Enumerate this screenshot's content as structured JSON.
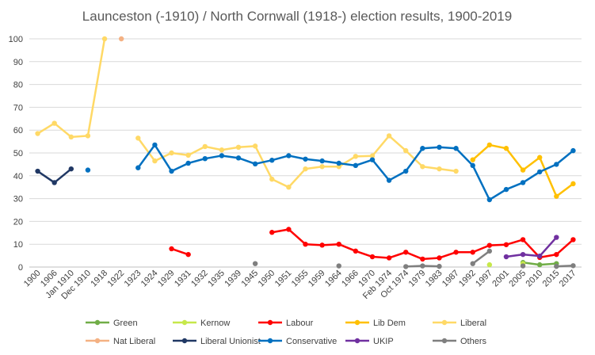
{
  "chart_data": {
    "type": "line",
    "title": "Launceston (-1910) / North Cornwall (1918-) election results, 1900-2019",
    "xlabel": "",
    "ylabel": "",
    "ylim": [
      0,
      100
    ],
    "yticks": [
      0,
      10,
      20,
      30,
      40,
      50,
      60,
      70,
      80,
      90,
      100
    ],
    "grid": true,
    "legend_position": "bottom",
    "categories": [
      "1900",
      "1906",
      "Jan 1910",
      "Dec 1910",
      "1918",
      "1922",
      "1923",
      "1924",
      "1929",
      "1931",
      "1932",
      "1935",
      "1939",
      "1945",
      "1950",
      "1951",
      "1955",
      "1959",
      "1964",
      "1966",
      "1970",
      "Feb 1974",
      "Oct 1974",
      "1979",
      "1983",
      "1987",
      "1992",
      "1997",
      "2001",
      "2005",
      "2010",
      "2015",
      "2017"
    ],
    "visible_tick_labels": [
      "1900",
      "1906",
      "Jan 1910",
      "Dec 1910",
      "1918",
      "1922",
      "1923",
      "1924",
      "1929",
      "1931",
      "1932",
      "1935",
      "1939",
      "1945",
      "1950",
      "1951",
      "1955",
      "1959",
      "1964",
      "1966",
      "1970",
      "Feb 1974",
      "Oct 1974",
      "1979",
      "1983",
      "1987",
      "1992",
      "1997",
      "2001",
      "2005",
      "2010",
      "2015",
      "2017"
    ],
    "series": [
      {
        "name": "Green",
        "color": "#70ad47",
        "values": [
          null,
          null,
          null,
          null,
          null,
          null,
          null,
          null,
          null,
          null,
          null,
          null,
          null,
          null,
          null,
          null,
          null,
          null,
          null,
          null,
          null,
          null,
          null,
          null,
          null,
          null,
          null,
          null,
          null,
          2.0,
          1.0,
          1.5,
          null
        ]
      },
      {
        "name": "Kernow",
        "color": "#c6e84a",
        "values": [
          null,
          null,
          null,
          null,
          null,
          null,
          null,
          null,
          null,
          null,
          null,
          null,
          null,
          null,
          null,
          null,
          null,
          null,
          null,
          null,
          null,
          null,
          null,
          null,
          null,
          null,
          null,
          1.0,
          null,
          1.5,
          null,
          null,
          null
        ]
      },
      {
        "name": "Labour",
        "color": "#ff0000",
        "values": [
          null,
          null,
          null,
          null,
          null,
          null,
          null,
          null,
          8.0,
          5.5,
          null,
          null,
          null,
          null,
          15.2,
          16.5,
          10.0,
          9.6,
          10.0,
          7.0,
          4.5,
          4.0,
          6.5,
          3.5,
          4.0,
          6.5,
          6.5,
          9.5,
          9.8,
          12.0,
          4.2,
          5.5,
          12.0
        ]
      },
      {
        "name": "Lib Dem",
        "color": "#ffc000",
        "values": [
          null,
          null,
          null,
          null,
          null,
          null,
          null,
          null,
          null,
          null,
          null,
          null,
          null,
          null,
          null,
          null,
          null,
          null,
          null,
          null,
          null,
          null,
          null,
          null,
          null,
          null,
          47.0,
          53.5,
          52.0,
          42.5,
          48.0,
          31.0,
          36.5
        ]
      },
      {
        "name": "Liberal",
        "color": "#ffd966",
        "values": [
          58.5,
          63.0,
          57.0,
          57.5,
          100.0,
          null,
          56.5,
          46.5,
          50.0,
          49.0,
          52.8,
          51.3,
          52.5,
          53.0,
          38.5,
          35.0,
          43.0,
          44.0,
          44.0,
          48.5,
          48.7,
          57.5,
          51.0,
          44.0,
          43.0,
          42.0,
          null,
          null,
          null,
          null,
          null,
          null,
          null
        ]
      },
      {
        "name": "Nat Liberal",
        "color": "#f4b183",
        "values": [
          null,
          null,
          null,
          null,
          null,
          100.0,
          null,
          null,
          null,
          null,
          null,
          null,
          null,
          null,
          null,
          null,
          null,
          null,
          null,
          null,
          null,
          null,
          null,
          null,
          null,
          null,
          null,
          null,
          null,
          null,
          null,
          null,
          null
        ]
      },
      {
        "name": "Liberal Unionist",
        "color": "#203864",
        "values": [
          42.0,
          37.0,
          43.0,
          null,
          null,
          null,
          null,
          null,
          null,
          null,
          null,
          null,
          null,
          null,
          null,
          null,
          null,
          null,
          null,
          null,
          null,
          null,
          null,
          null,
          null,
          null,
          null,
          null,
          null,
          null,
          null,
          null,
          null
        ]
      },
      {
        "name": "Conservative",
        "color": "#0070c0",
        "values": [
          null,
          null,
          null,
          42.5,
          null,
          null,
          43.5,
          53.5,
          42.0,
          45.5,
          47.5,
          48.8,
          47.8,
          45.2,
          46.8,
          48.8,
          47.3,
          46.5,
          45.5,
          44.5,
          47.0,
          38.0,
          42.0,
          52.0,
          52.5,
          52.0,
          44.5,
          29.5,
          34.0,
          37.0,
          41.7,
          45.0,
          51.0
        ]
      },
      {
        "name": "UKIP",
        "color": "#7030a0",
        "values": [
          null,
          null,
          null,
          null,
          null,
          null,
          null,
          null,
          null,
          null,
          null,
          null,
          null,
          null,
          null,
          null,
          null,
          null,
          null,
          null,
          null,
          null,
          null,
          null,
          null,
          null,
          null,
          null,
          4.5,
          5.5,
          4.8,
          13.0,
          null
        ]
      },
      {
        "name": "Others",
        "color": "#7f7f7f",
        "values": [
          null,
          null,
          null,
          null,
          null,
          null,
          null,
          null,
          null,
          null,
          null,
          null,
          null,
          1.5,
          null,
          null,
          null,
          null,
          0.5,
          null,
          null,
          null,
          0.2,
          0.5,
          0.3,
          null,
          1.5,
          7.0,
          null,
          0.5,
          null,
          0.3,
          0.6
        ]
      }
    ]
  }
}
